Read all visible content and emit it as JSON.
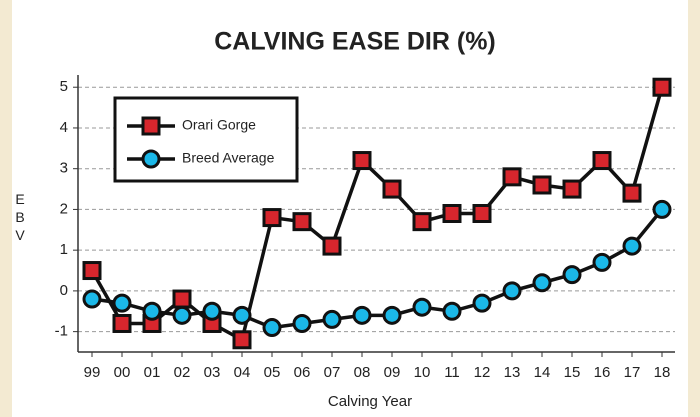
{
  "chart_data": {
    "type": "line",
    "title": "CALVING EASE DIR (%)",
    "x_label": "Calving Year",
    "y_label": "EBV",
    "categories": [
      "99",
      "00",
      "01",
      "02",
      "03",
      "04",
      "05",
      "06",
      "07",
      "08",
      "09",
      "10",
      "11",
      "12",
      "13",
      "14",
      "15",
      "16",
      "17",
      "18"
    ],
    "series": [
      {
        "name": "Orari Gorge",
        "color": "#d7262d",
        "marker": "square",
        "values": [
          0.5,
          -0.8,
          -0.8,
          -0.2,
          -0.8,
          -1.2,
          1.8,
          1.7,
          1.1,
          3.2,
          2.5,
          1.7,
          1.9,
          1.9,
          2.8,
          2.6,
          2.5,
          3.2,
          2.4,
          5.0
        ]
      },
      {
        "name": "Breed Average",
        "color": "#1bb8e8",
        "marker": "circle",
        "values": [
          -0.2,
          -0.3,
          -0.5,
          -0.6,
          -0.5,
          -0.6,
          -0.9,
          -0.8,
          -0.7,
          -0.6,
          -0.6,
          -0.4,
          -0.5,
          -0.3,
          0.0,
          0.2,
          0.4,
          0.7,
          1.1,
          2.0
        ]
      }
    ],
    "ylim": [
      -1.5,
      5.3
    ],
    "yticks": [
      -1,
      0,
      1,
      2,
      3,
      4,
      5
    ],
    "grid": true,
    "legend": "top-left"
  }
}
